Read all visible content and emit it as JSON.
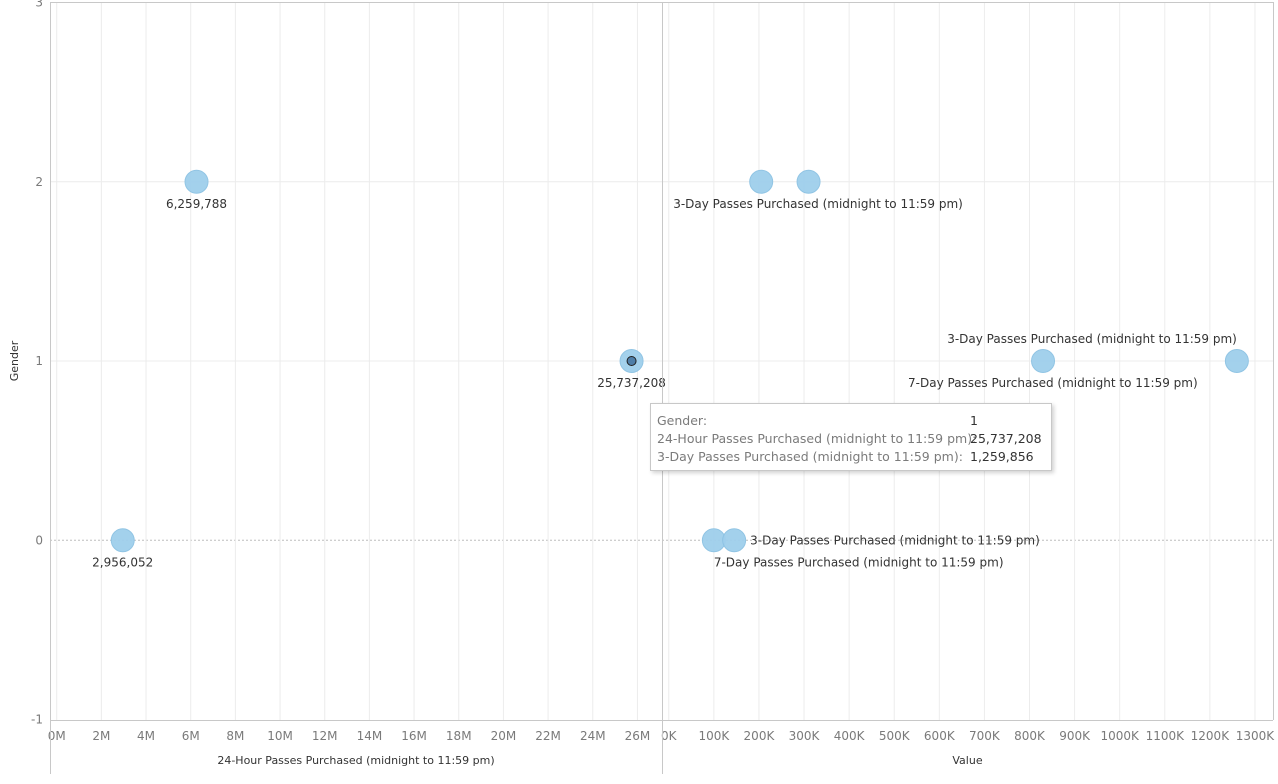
{
  "chart_data": [
    {
      "type": "scatter",
      "xlabel": "24-Hour Passes Purchased (midnight to 11:59 pm)",
      "ylabel": "Gender",
      "xlim": [
        -0.3,
        27.1
      ],
      "ylim": [
        -1,
        3
      ],
      "x_ticks": [
        "0M",
        "2M",
        "4M",
        "6M",
        "8M",
        "10M",
        "12M",
        "14M",
        "16M",
        "18M",
        "20M",
        "22M",
        "24M",
        "26M"
      ],
      "y_ticks": [
        "3",
        "2",
        "1",
        "0",
        "-1"
      ],
      "points": [
        {
          "x": 6.259788,
          "y": 2,
          "label": "6,259,788"
        },
        {
          "x": 25.737208,
          "y": 1,
          "label": "25,737,208",
          "selected": true
        },
        {
          "x": 2.956052,
          "y": 0,
          "label": "2,956,052"
        }
      ],
      "x_unit": "millions"
    },
    {
      "type": "scatter",
      "xlabel": "Value",
      "ylabel": "Gender",
      "xlim": [
        -15,
        1340
      ],
      "ylim": [
        -1,
        3
      ],
      "x_ticks": [
        "0K",
        "100K",
        "200K",
        "300K",
        "400K",
        "500K",
        "600K",
        "700K",
        "800K",
        "900K",
        "1000K",
        "1100K",
        "1200K",
        "1300K"
      ],
      "x_unit": "thousands",
      "points": [
        {
          "x": 205,
          "y": 2,
          "label": ""
        },
        {
          "x": 310,
          "y": 2,
          "label": "3-Day Passes Purchased (midnight to 11:59 pm)"
        },
        {
          "x": 830,
          "y": 1,
          "label": "7-Day Passes Purchased (midnight to 11:59 pm)"
        },
        {
          "x": 1259.856,
          "y": 1,
          "label": "3-Day Passes Purchased (midnight to 11:59 pm)"
        },
        {
          "x": 100,
          "y": 0,
          "label": "7-Day Passes Purchased (midnight to 11:59 pm)"
        },
        {
          "x": 145,
          "y": 0,
          "label": "3-Day Passes Purchased (midnight to 11:59 pm)"
        }
      ]
    }
  ],
  "style": {
    "point_color": "#9fcfec",
    "point_edge": "#8cc2e3",
    "selected_color": "#4e7ea8",
    "grid_color": "#ececec",
    "axis_color": "#c8c8c8"
  },
  "tooltip": {
    "rows": [
      {
        "key": "Gender:",
        "value": "1"
      },
      {
        "key": "24-Hour Passes Purchased (midnight to 11:59 pm):",
        "value": "25,737,208"
      },
      {
        "key": "3-Day Passes Purchased (midnight to 11:59 pm):",
        "value": "1,259,856"
      }
    ]
  }
}
